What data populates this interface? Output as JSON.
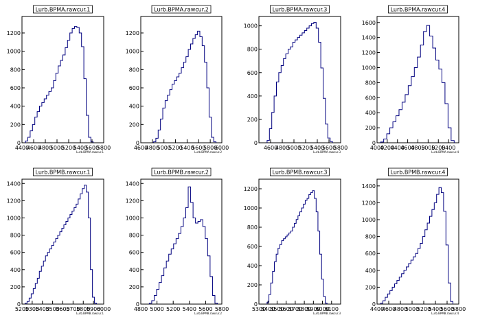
{
  "chart_data": [
    {
      "type": "histogram",
      "title": "Lurb.BPMA.rawcur.1",
      "xlabel": "Lurb.BPMA.rawcur.1",
      "xlim": [
        4400,
        5800
      ],
      "ylim": [
        0,
        1380
      ],
      "xticks": [
        4400,
        4600,
        4800,
        5000,
        5200,
        5400,
        5600,
        5800
      ],
      "yticks": [
        0,
        200,
        400,
        600,
        800,
        1000,
        1200
      ],
      "x": [
        4480,
        4520,
        4560,
        4600,
        4640,
        4680,
        4720,
        4760,
        4800,
        4840,
        4880,
        4920,
        4960,
        5000,
        5040,
        5080,
        5120,
        5160,
        5200,
        5240,
        5280,
        5320,
        5360,
        5400,
        5440,
        5480,
        5520,
        5560,
        5600
      ],
      "values": [
        20,
        60,
        130,
        200,
        280,
        340,
        400,
        440,
        480,
        520,
        560,
        600,
        680,
        760,
        840,
        900,
        960,
        1040,
        1120,
        1200,
        1250,
        1270,
        1260,
        1200,
        1050,
        700,
        300,
        60,
        10
      ]
    },
    {
      "type": "histogram",
      "title": "Lurb.BPMA.rawcur.2",
      "xlabel": "Lurb.BPMA.rawcur.2",
      "xlim": [
        4600,
        6000
      ],
      "ylim": [
        0,
        1380
      ],
      "xticks": [
        4600,
        4800,
        5000,
        5200,
        5400,
        5600,
        5800,
        6000
      ],
      "yticks": [
        0,
        200,
        400,
        600,
        800,
        1000,
        1200
      ],
      "x": [
        4840,
        4880,
        4920,
        4960,
        5000,
        5040,
        5080,
        5120,
        5160,
        5200,
        5240,
        5280,
        5320,
        5360,
        5400,
        5440,
        5480,
        5520,
        5560,
        5600,
        5640,
        5680,
        5720,
        5760,
        5800,
        5840,
        5880
      ],
      "values": [
        10,
        50,
        140,
        260,
        380,
        460,
        520,
        580,
        640,
        680,
        720,
        760,
        820,
        880,
        940,
        1020,
        1080,
        1140,
        1180,
        1220,
        1160,
        1060,
        880,
        600,
        280,
        60,
        10
      ]
    },
    {
      "type": "histogram",
      "title": "Lurb.BPMA.rawcur.3",
      "xlabel": "Lurb.BPMA.rawcur.3",
      "xlim": [
        4400,
        5800
      ],
      "ylim": [
        0,
        1080
      ],
      "xticks": [
        4600,
        4800,
        5000,
        5200,
        5400,
        5600,
        5800
      ],
      "yticks": [
        0,
        200,
        400,
        600,
        800,
        1000
      ],
      "x": [
        4560,
        4600,
        4640,
        4680,
        4720,
        4760,
        4800,
        4840,
        4880,
        4920,
        4960,
        5000,
        5040,
        5080,
        5120,
        5160,
        5200,
        5240,
        5280,
        5320,
        5360,
        5400,
        5440,
        5480,
        5520,
        5560,
        5600,
        5640
      ],
      "values": [
        20,
        120,
        260,
        400,
        520,
        600,
        660,
        720,
        760,
        800,
        820,
        860,
        880,
        900,
        920,
        940,
        960,
        980,
        1000,
        1020,
        1030,
        980,
        860,
        640,
        380,
        160,
        40,
        10
      ]
    },
    {
      "type": "histogram",
      "title": "Lurb.BPMA.rawcur.4",
      "xlabel": "Lurb.BPMA.rawcur.4",
      "xlim": [
        4000,
        5600
      ],
      "ylim": [
        0,
        1680
      ],
      "xticks": [
        4000,
        4200,
        4400,
        4600,
        4800,
        5000,
        5200,
        5400
      ],
      "yticks": [
        0,
        200,
        400,
        600,
        800,
        1000,
        1200,
        1400,
        1600
      ],
      "x": [
        4100,
        4160,
        4220,
        4280,
        4340,
        4400,
        4460,
        4520,
        4580,
        4640,
        4700,
        4760,
        4820,
        4880,
        4940,
        5000,
        5060,
        5120,
        5180,
        5240,
        5300,
        5360,
        5420,
        5480
      ],
      "values": [
        10,
        50,
        120,
        200,
        280,
        360,
        440,
        540,
        640,
        760,
        880,
        1000,
        1140,
        1300,
        1480,
        1560,
        1420,
        1260,
        1100,
        980,
        800,
        520,
        200,
        30
      ]
    },
    {
      "type": "histogram",
      "title": "Lurb.BPMB.rawcur.1",
      "xlabel": "Lurb.BPMB.rawcur.1",
      "xlim": [
        5200,
        6000
      ],
      "ylim": [
        0,
        1450
      ],
      "xticks": [
        5200,
        5300,
        5400,
        5500,
        5600,
        5700,
        5800,
        5900,
        6000
      ],
      "yticks": [
        0,
        200,
        400,
        600,
        800,
        1000,
        1200,
        1400
      ],
      "x": [
        5240,
        5260,
        5280,
        5300,
        5320,
        5340,
        5360,
        5380,
        5400,
        5420,
        5440,
        5460,
        5480,
        5500,
        5520,
        5540,
        5560,
        5580,
        5600,
        5620,
        5640,
        5660,
        5680,
        5700,
        5720,
        5740,
        5760,
        5780,
        5800,
        5820,
        5840,
        5860,
        5880,
        5900,
        5920
      ],
      "values": [
        10,
        30,
        70,
        120,
        180,
        240,
        300,
        380,
        440,
        500,
        560,
        600,
        640,
        680,
        720,
        760,
        800,
        840,
        880,
        920,
        960,
        1000,
        1040,
        1080,
        1120,
        1160,
        1220,
        1280,
        1340,
        1380,
        1300,
        1000,
        400,
        80,
        10
      ]
    },
    {
      "type": "histogram",
      "title": "Lurb.BPMB.rawcur.2",
      "xlabel": "Lurb.BPMB.rawcur.2",
      "xlim": [
        4800,
        5800
      ],
      "ylim": [
        0,
        1450
      ],
      "xticks": [
        4800,
        5000,
        5200,
        5400,
        5600,
        5800
      ],
      "yticks": [
        0,
        200,
        400,
        600,
        800,
        1000,
        1200,
        1400
      ],
      "x": [
        4920,
        4950,
        4980,
        5010,
        5040,
        5070,
        5100,
        5130,
        5160,
        5190,
        5220,
        5250,
        5280,
        5310,
        5340,
        5370,
        5400,
        5430,
        5460,
        5490,
        5520,
        5550,
        5580,
        5610,
        5640,
        5670,
        5700,
        5730
      ],
      "values": [
        10,
        40,
        100,
        170,
        250,
        330,
        420,
        500,
        580,
        640,
        700,
        760,
        820,
        900,
        1000,
        1120,
        1360,
        1180,
        1000,
        940,
        960,
        980,
        900,
        760,
        560,
        320,
        100,
        10
      ]
    },
    {
      "type": "histogram",
      "title": "Lurb.BPMB.rawcur.3",
      "xlabel": "Lurb.BPMB.rawcur.3",
      "xlim": [
        5300,
        6200
      ],
      "ylim": [
        0,
        1300
      ],
      "xticks": [
        5300,
        5400,
        5500,
        5600,
        5700,
        5800,
        5900,
        6000,
        6100
      ],
      "yticks": [
        0,
        200,
        400,
        600,
        800,
        1000,
        1200
      ],
      "x": [
        5400,
        5420,
        5440,
        5460,
        5480,
        5500,
        5520,
        5540,
        5560,
        5580,
        5600,
        5620,
        5640,
        5660,
        5680,
        5700,
        5720,
        5740,
        5760,
        5780,
        5800,
        5820,
        5840,
        5860,
        5880,
        5900,
        5920,
        5940,
        5960,
        5980,
        6000,
        6020,
        6040
      ],
      "values": [
        20,
        100,
        220,
        340,
        440,
        520,
        580,
        620,
        660,
        680,
        700,
        720,
        740,
        760,
        800,
        840,
        880,
        920,
        960,
        1000,
        1040,
        1080,
        1100,
        1140,
        1160,
        1180,
        1100,
        960,
        760,
        520,
        260,
        80,
        10
      ]
    },
    {
      "type": "histogram",
      "title": "Lurb.BPMB.rawcur.4",
      "xlabel": "Lurb.BPMB.rawcur.4",
      "xlim": [
        4400,
        5800
      ],
      "ylim": [
        0,
        1480
      ],
      "xticks": [
        4400,
        4600,
        4800,
        5000,
        5200,
        5400,
        5600,
        5800
      ],
      "yticks": [
        0,
        200,
        400,
        600,
        800,
        1000,
        1200,
        1400
      ],
      "x": [
        4480,
        4520,
        4560,
        4600,
        4640,
        4680,
        4720,
        4760,
        4800,
        4840,
        4880,
        4920,
        4960,
        5000,
        5040,
        5080,
        5120,
        5160,
        5200,
        5240,
        5280,
        5320,
        5360,
        5400,
        5440,
        5480,
        5520,
        5560,
        5600,
        5640,
        5680
      ],
      "values": [
        10,
        40,
        80,
        120,
        160,
        200,
        240,
        280,
        320,
        360,
        400,
        440,
        480,
        520,
        560,
        600,
        660,
        720,
        800,
        880,
        960,
        1040,
        1120,
        1200,
        1300,
        1380,
        1320,
        1100,
        700,
        250,
        30
      ]
    }
  ]
}
